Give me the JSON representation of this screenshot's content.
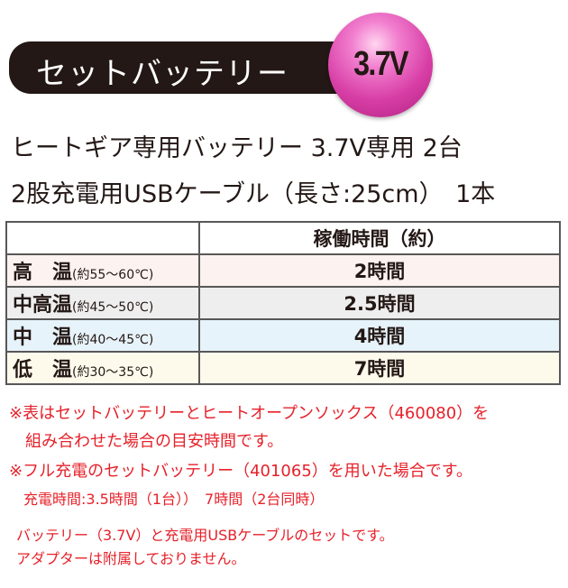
{
  "header": {
    "title": "セットバッテリー",
    "badge": "3.7V",
    "badge_color": "#d83fa6"
  },
  "contents": [
    "ヒートギア専用バッテリー 3.7V専用 2台",
    "2股充電用USBケーブル（長さ:25cm）　1本"
  ],
  "table": {
    "header": [
      "",
      "稼働時間（約）"
    ],
    "rows": [
      {
        "label": "高　温",
        "range": "(約55〜60℃)",
        "time": "2時間",
        "bg": "#fcf2ef"
      },
      {
        "label": "中高温",
        "range": "(約45〜50℃)",
        "time": "2.5時間",
        "bg": "#eeeeee"
      },
      {
        "label": "中　温",
        "range": "(約40〜45℃)",
        "time": "4時間",
        "bg": "#e7f3fa"
      },
      {
        "label": "低　温",
        "range": "(約30〜35℃)",
        "time": "7時間",
        "bg": "#fdfaec"
      }
    ]
  },
  "notes": [
    "※表はセットバッテリーとヒートオープンソックス（460080）を",
    "　組み合わせた場合の目安時間です。",
    "※フル充電のセットバッテリー（401065）を用いた場合です。",
    "　充電時間:3.5時間（1台））　7時間（2台同時）"
  ],
  "footer": [
    "バッテリー（3.7V）と充電用USBケーブルのセットです。",
    "アダプターは附属しておりません。"
  ]
}
